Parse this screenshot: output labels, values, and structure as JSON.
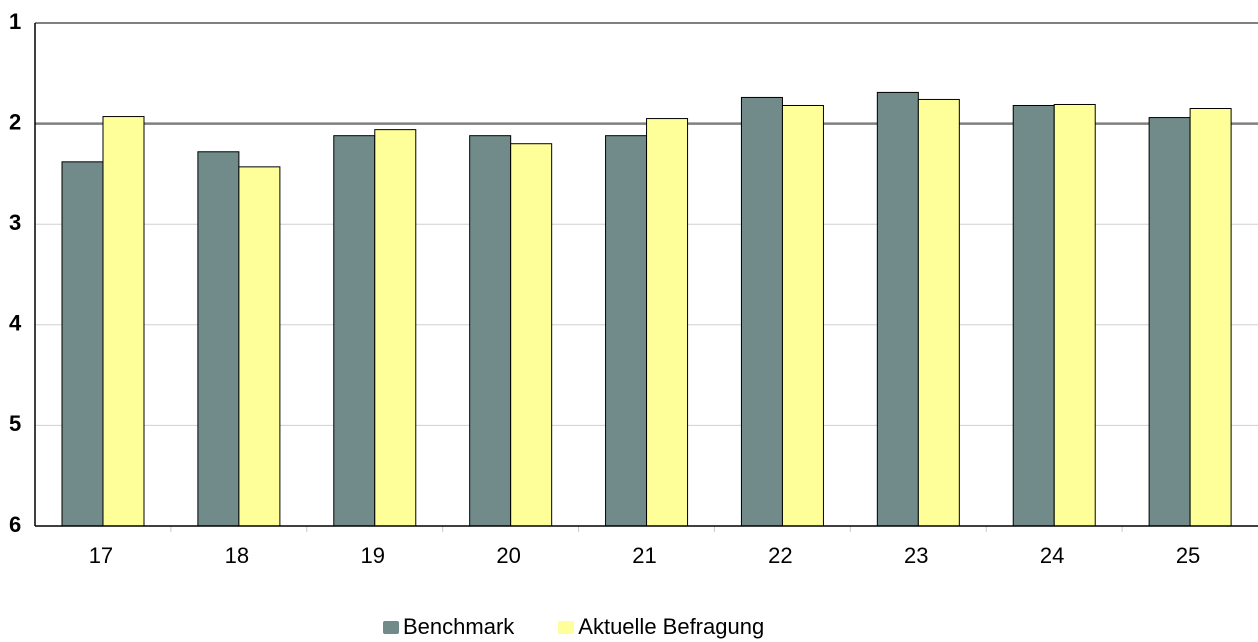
{
  "chart_data": {
    "type": "bar",
    "categories": [
      "17",
      "18",
      "19",
      "20",
      "21",
      "22",
      "23",
      "24",
      "25"
    ],
    "series": [
      {
        "name": "Benchmark",
        "color": "#718a8a",
        "values": [
          2.38,
          2.28,
          2.12,
          2.12,
          2.12,
          1.74,
          1.69,
          1.82,
          1.94
        ]
      },
      {
        "name": "Aktuelle Befragung",
        "color": "#ffff99",
        "values": [
          1.93,
          2.43,
          2.06,
          2.2,
          1.95,
          1.82,
          1.76,
          1.81,
          1.85
        ]
      }
    ],
    "y_ticks": [
      "1",
      "2",
      "3",
      "4",
      "5",
      "6"
    ],
    "ylim": [
      1,
      6
    ],
    "y_reversed": true,
    "reference_line": 2,
    "grid": true,
    "legend_position": "bottom"
  }
}
